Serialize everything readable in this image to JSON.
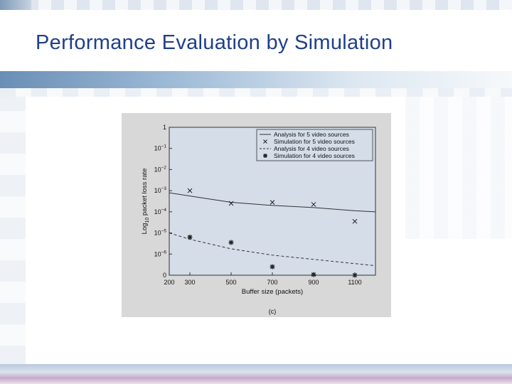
{
  "slide": {
    "title": "Performance Evaluation by Simulation"
  },
  "colors": {
    "title": "#1f3f8a",
    "plot_background": "#d5dde9",
    "figure_background": "#d8d8d8",
    "line": "#222222"
  },
  "chart_data": {
    "type": "line",
    "title": "",
    "caption": "(c)",
    "xlabel": "Buffer size (packets)",
    "ylabel_parts": {
      "prefix": "Log",
      "sub": "10",
      "suffix": " packet loss rate"
    },
    "xlim": [
      200,
      1200
    ],
    "y_exponent_range": [
      -7,
      0
    ],
    "x_ticks": [
      {
        "value": 200,
        "label": "200"
      },
      {
        "value": 300,
        "label": "300"
      },
      {
        "value": 500,
        "label": "500"
      },
      {
        "value": 700,
        "label": "700"
      },
      {
        "value": 900,
        "label": "900"
      },
      {
        "value": 1100,
        "label": "1100"
      }
    ],
    "y_ticks": [
      {
        "exp": 0,
        "base": "1",
        "sup": ""
      },
      {
        "exp": -1,
        "base": "10",
        "sup": "−1"
      },
      {
        "exp": -2,
        "base": "10",
        "sup": "−2"
      },
      {
        "exp": -3,
        "base": "10",
        "sup": "−3"
      },
      {
        "exp": -4,
        "base": "10",
        "sup": "−4"
      },
      {
        "exp": -5,
        "base": "10",
        "sup": "−5"
      },
      {
        "exp": -6,
        "base": "10",
        "sup": "−6"
      },
      {
        "exp": -7,
        "base": "0",
        "sup": ""
      }
    ],
    "legend_position": "top-right",
    "series": [
      {
        "name": "Analysis for 5 video sources",
        "style": "solid",
        "x": [
          200,
          300,
          500,
          700,
          900,
          1100,
          1200
        ],
        "log10_y": [
          -3.1,
          -3.25,
          -3.55,
          -3.7,
          -3.8,
          -3.95,
          -4.0
        ]
      },
      {
        "name": "Simulation for 5 video sources",
        "style": "marker-x",
        "x": [
          300,
          500,
          700,
          900,
          1100
        ],
        "log10_y": [
          -3.0,
          -3.6,
          -3.55,
          -3.65,
          -4.45
        ]
      },
      {
        "name": "Analysis for 4 video sources",
        "style": "dashed",
        "x": [
          200,
          300,
          500,
          700,
          900,
          1100,
          1200
        ],
        "log10_y": [
          -5.0,
          -5.3,
          -5.75,
          -6.05,
          -6.25,
          -6.45,
          -6.55
        ]
      },
      {
        "name": "Simulation for 4 video sources",
        "style": "marker-star",
        "x": [
          300,
          500,
          700,
          900,
          1100
        ],
        "log10_y": [
          -5.2,
          -5.45,
          -6.6,
          -6.97,
          -7.0
        ]
      }
    ]
  }
}
